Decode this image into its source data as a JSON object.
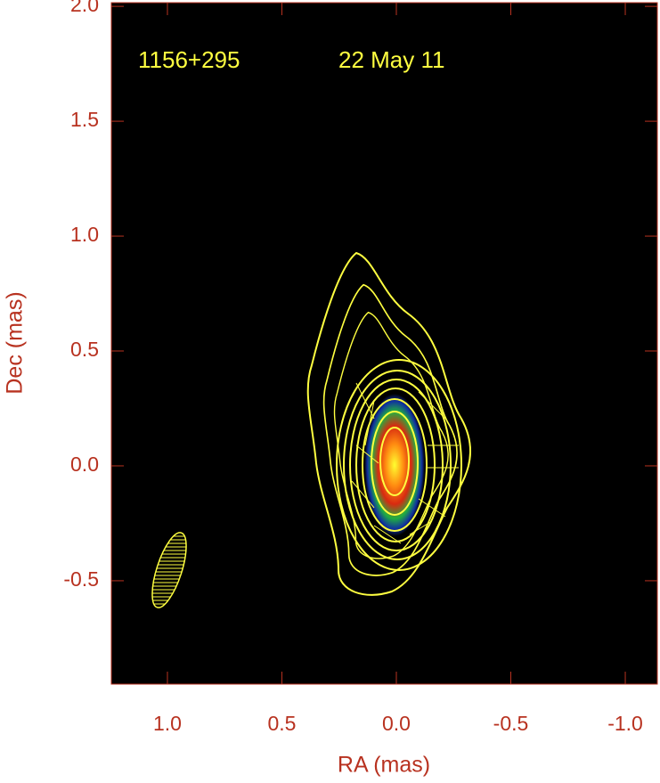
{
  "chart_data": {
    "type": "image",
    "xlabel": "RA (mas)",
    "ylabel": "Dec (mas)",
    "annotations": [
      "1156+295",
      "22 May 11"
    ],
    "xlim": [
      1.245,
      -1.14
    ],
    "ylim": [
      -0.95,
      2.016
    ],
    "xticks": [
      {
        "value": 1,
        "label": "1.0"
      },
      0.5,
      {
        "value": 0,
        "label": "0.0"
      },
      -0.5,
      {
        "value": -1,
        "label": "-1.0"
      }
    ],
    "yticks": [
      -0.5,
      {
        "value": 0,
        "label": "0.0"
      },
      0.5,
      {
        "value": 1,
        "label": "1.0"
      },
      1.5,
      {
        "value": 2,
        "label": "2.0"
      }
    ]
  }
}
